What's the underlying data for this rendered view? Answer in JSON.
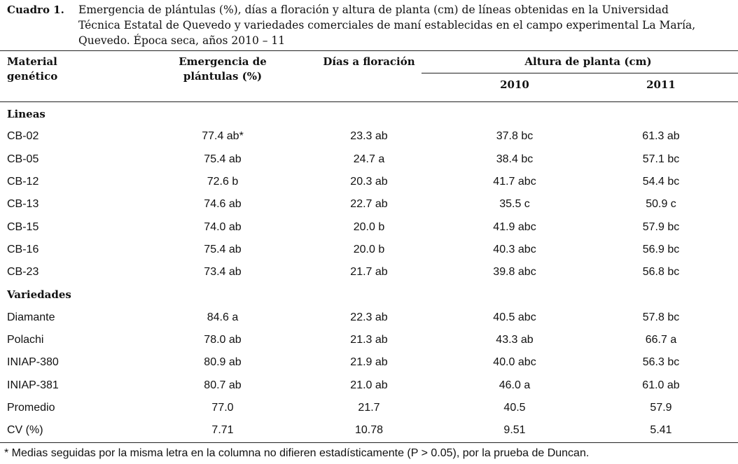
{
  "caption": {
    "label": "Cuadro 1.",
    "lines": [
      "Emergencia de plántulas (%), días a floración y altura de planta (cm) de líneas obtenidas en la Universidad",
      "Técnica Estatal de Quevedo y variedades comerciales de maní establecidas en el campo experimental La María,",
      "Quevedo. Época seca, años 2010 – 11"
    ]
  },
  "header": {
    "material": "Material genético",
    "emergencia": "Emergencia de plántulas (%)",
    "dias": "Días a floración",
    "altura": "Altura de planta (cm)",
    "years": [
      "2010",
      "2011"
    ]
  },
  "sections": [
    {
      "title": "Lineas",
      "rows": [
        [
          "CB-02",
          "77.4 ab*",
          "23.3 ab",
          "37.8 bc",
          "61.3 ab"
        ],
        [
          "CB-05",
          "75.4 ab",
          "24.7 a",
          "38.4 bc",
          "57.1 bc"
        ],
        [
          "CB-12",
          "72.6 b",
          "20.3 ab",
          "41.7 abc",
          "54.4 bc"
        ],
        [
          "CB-13",
          "74.6 ab",
          "22.7 ab",
          "35.5 c",
          "50.9 c"
        ],
        [
          "CB-15",
          "74.0 ab",
          "20.0 b",
          "41.9 abc",
          "57.9 bc"
        ],
        [
          "CB-16",
          "75.4 ab",
          "20.0 b",
          "40.3 abc",
          "56.9 bc"
        ],
        [
          "CB-23",
          "73.4 ab",
          "21.7 ab",
          "39.8 abc",
          "56.8 bc"
        ]
      ]
    },
    {
      "title": "Variedades",
      "rows": [
        [
          "Diamante",
          "84.6 a",
          "22.3 ab",
          "40.5 abc",
          "57.8 bc"
        ],
        [
          "Polachi",
          "78.0 ab",
          "21.3 ab",
          "43.3 ab",
          "66.7 a"
        ],
        [
          "INIAP-380",
          "80.9 ab",
          "21.9 ab",
          "40.0 abc",
          "56.3 bc"
        ],
        [
          "INIAP-381",
          "80.7 ab",
          "21.0 ab",
          "46.0 a",
          "61.0 ab"
        ],
        [
          "Promedio",
          "77.0",
          "21.7",
          "40.5",
          "57.9"
        ],
        [
          "CV (%)",
          "7.71",
          "10.78",
          "9.51",
          "5.41"
        ]
      ]
    }
  ],
  "footnote": "* Medias seguidas por la misma letra en la columna no difieren estadísticamente (P > 0.05), por la prueba de Duncan."
}
